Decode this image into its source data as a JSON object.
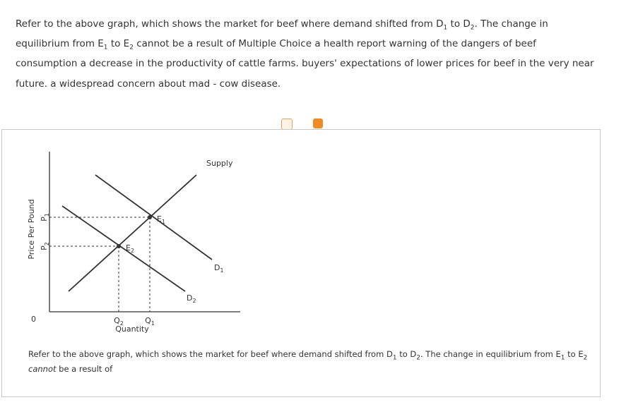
{
  "question": {
    "lines": [
      [
        {
          "text": "Refer to the above graph, which shows the market for beef where demand shifted from D"
        },
        {
          "sub": "1"
        },
        {
          "text": " to D"
        },
        {
          "sub": "2"
        },
        {
          "text": ". The change in"
        }
      ],
      [
        {
          "text": "equilibrium from E"
        },
        {
          "sub": "1"
        },
        {
          "text": " to E"
        },
        {
          "sub": "2"
        },
        {
          "text": " cannot be a result of Multiple Choice a health report warning of the dangers of beef"
        }
      ],
      [
        {
          "text": "consumption a decrease in the productivity of cattle farms. buyers' expectations of lower prices for beef in the very near"
        }
      ],
      [
        {
          "text": "future. a widespread concern about mad - cow disease."
        }
      ]
    ]
  },
  "graph": {
    "y_axis_label": "Price Per Pound",
    "x_axis_label": "Quantity",
    "origin": "0",
    "p1": {
      "text": "P",
      "sub": "1"
    },
    "p2": {
      "text": "P",
      "sub": "2"
    },
    "q1": {
      "text": "Q",
      "sub": "1"
    },
    "q2": {
      "text": "Q",
      "sub": "2"
    },
    "e1": {
      "text": "E",
      "sub": "1"
    },
    "e2": {
      "text": "E",
      "sub": "2"
    },
    "d1": {
      "text": "D",
      "sub": "1"
    },
    "d2": {
      "text": "D",
      "sub": "2"
    },
    "supply": "Supply"
  },
  "caption": {
    "lines": [
      [
        {
          "text": "Refer to the above graph, which shows the market for beef where demand shifted from D"
        },
        {
          "sub": "1"
        },
        {
          "text": " to D"
        },
        {
          "sub": "2"
        },
        {
          "text": ". The change in equilibrium from E"
        },
        {
          "sub": "1"
        },
        {
          "text": " to E"
        },
        {
          "sub": "2"
        }
      ],
      [
        {
          "em": "cannot"
        },
        {
          "text": " be a result of"
        }
      ]
    ]
  }
}
